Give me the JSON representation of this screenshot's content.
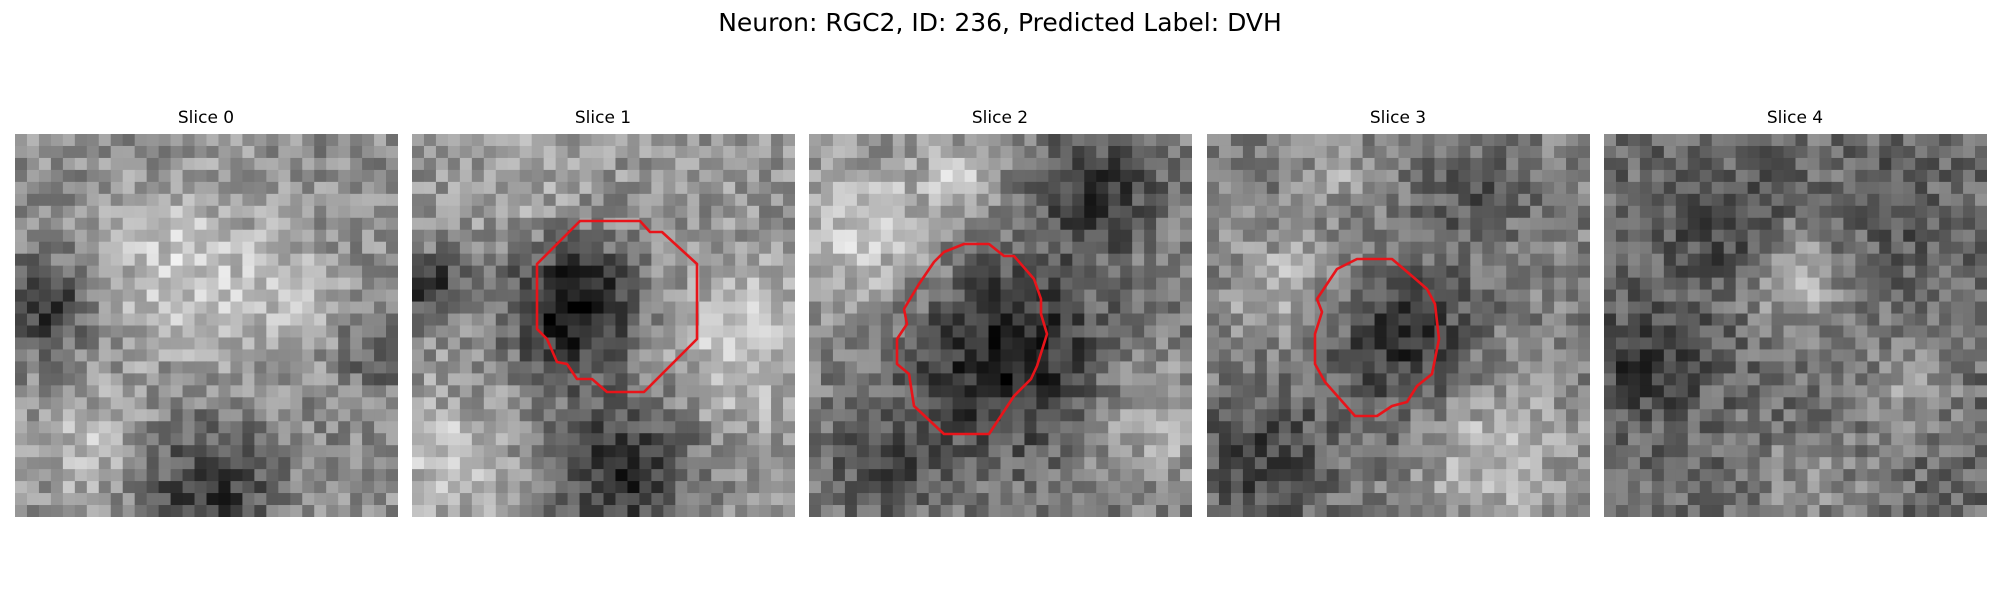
{
  "figure": {
    "title": "Neuron: RGC2, ID: 236, Predicted Label: DVH"
  },
  "slices": [
    {
      "title": "Slice 0",
      "has_contour": false
    },
    {
      "title": "Slice 1",
      "has_contour": true
    },
    {
      "title": "Slice 2",
      "has_contour": true
    },
    {
      "title": "Slice 3",
      "has_contour": true
    },
    {
      "title": "Slice 4",
      "has_contour": false
    }
  ],
  "colors": {
    "contour": "#e8141a",
    "colormap": "gray",
    "background": "#ffffff"
  }
}
